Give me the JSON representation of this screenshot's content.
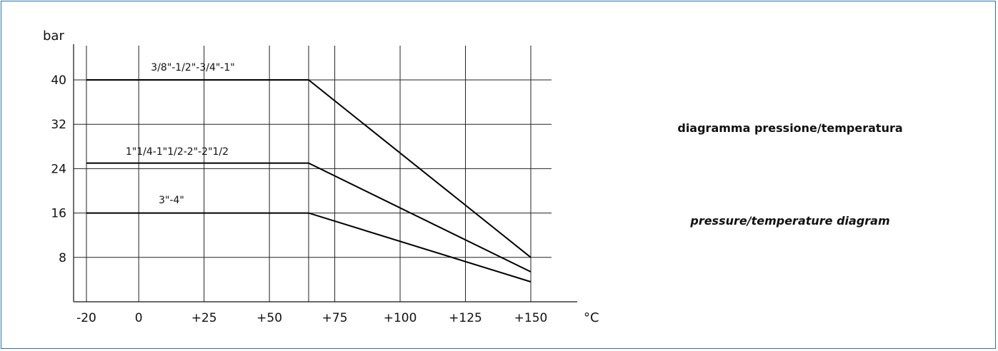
{
  "chart_data": {
    "type": "line",
    "title": "diagramma pressione/temperatura",
    "subtitle": "pressure/temperature diagram",
    "xlabel": "°C",
    "ylabel": "bar",
    "x_tick_labels": [
      "-20",
      "0",
      "+25",
      "+50",
      "+75",
      "+100",
      "+125",
      "+150"
    ],
    "x_ticks": [
      -20,
      0,
      25,
      50,
      75,
      100,
      125,
      150
    ],
    "y_tick_labels": [
      "8",
      "16",
      "24",
      "32",
      "40"
    ],
    "y_ticks": [
      8,
      16,
      24,
      32,
      40
    ],
    "xlim": [
      -20,
      150
    ],
    "ylim": [
      0,
      48
    ],
    "grid": true,
    "series": [
      {
        "name": "3/8\"-1/2\"-3/4\"-1\"",
        "x": [
          -20,
          65,
          150
        ],
        "y": [
          40,
          40,
          8
        ]
      },
      {
        "name": "1\"1/4-1\"1/2-2\"-2\"1/2",
        "x": [
          -20,
          65,
          150
        ],
        "y": [
          25,
          25,
          5.4
        ]
      },
      {
        "name": "3\"-4\"",
        "x": [
          -20,
          65,
          150
        ],
        "y": [
          16,
          16,
          3.6
        ]
      }
    ]
  }
}
